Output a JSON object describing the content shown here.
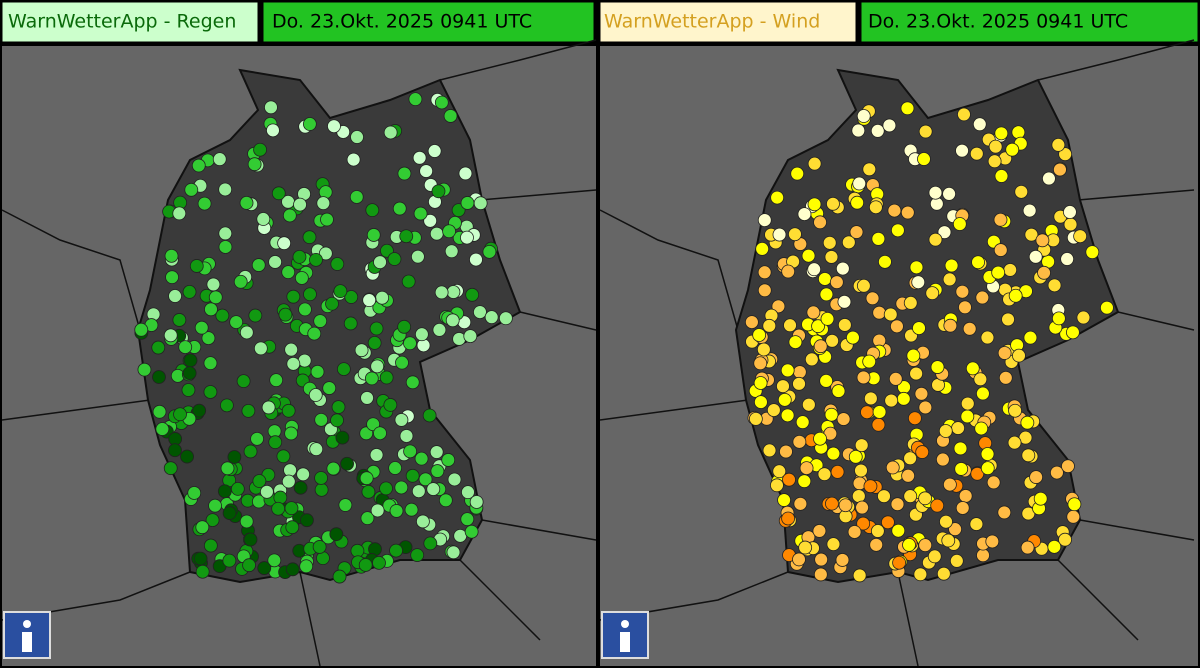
{
  "panels": [
    {
      "title": "WarnWetterApp - Regen",
      "timestamp": "Do. 23.Okt. 2025 0941 UTC"
    },
    {
      "title": "WarnWetterApp - Wind",
      "timestamp": "Do. 23.Okt. 2025 0941 UTC"
    }
  ]
}
